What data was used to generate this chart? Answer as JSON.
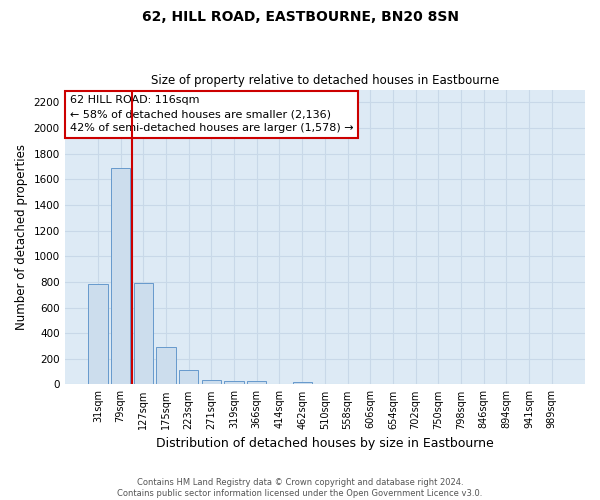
{
  "title": "62, HILL ROAD, EASTBOURNE, BN20 8SN",
  "subtitle": "Size of property relative to detached houses in Eastbourne",
  "xlabel": "Distribution of detached houses by size in Eastbourne",
  "ylabel": "Number of detached properties",
  "footnote1": "Contains HM Land Registry data © Crown copyright and database right 2024.",
  "footnote2": "Contains public sector information licensed under the Open Government Licence v3.0.",
  "categories": [
    "31sqm",
    "79sqm",
    "127sqm",
    "175sqm",
    "223sqm",
    "271sqm",
    "319sqm",
    "366sqm",
    "414sqm",
    "462sqm",
    "510sqm",
    "558sqm",
    "606sqm",
    "654sqm",
    "702sqm",
    "750sqm",
    "798sqm",
    "846sqm",
    "894sqm",
    "941sqm",
    "989sqm"
  ],
  "values": [
    780,
    1690,
    795,
    295,
    110,
    38,
    30,
    30,
    0,
    22,
    0,
    0,
    0,
    0,
    0,
    0,
    0,
    0,
    0,
    0,
    0
  ],
  "bar_color": "#ccdded",
  "bar_edge_color": "#6699cc",
  "vline_x_idx": 1.5,
  "vline_color": "#cc0000",
  "annotation_title": "62 HILL ROAD: 116sqm",
  "annotation_line1": "← 58% of detached houses are smaller (2,136)",
  "annotation_line2": "42% of semi-detached houses are larger (1,578) →",
  "annotation_box_color": "#ffffff",
  "annotation_box_edge": "#cc0000",
  "ylim": [
    0,
    2300
  ],
  "yticks": [
    0,
    200,
    400,
    600,
    800,
    1000,
    1200,
    1400,
    1600,
    1800,
    2000,
    2200
  ],
  "grid_color": "#c8d8e8",
  "background_color": "#ddeaf5"
}
